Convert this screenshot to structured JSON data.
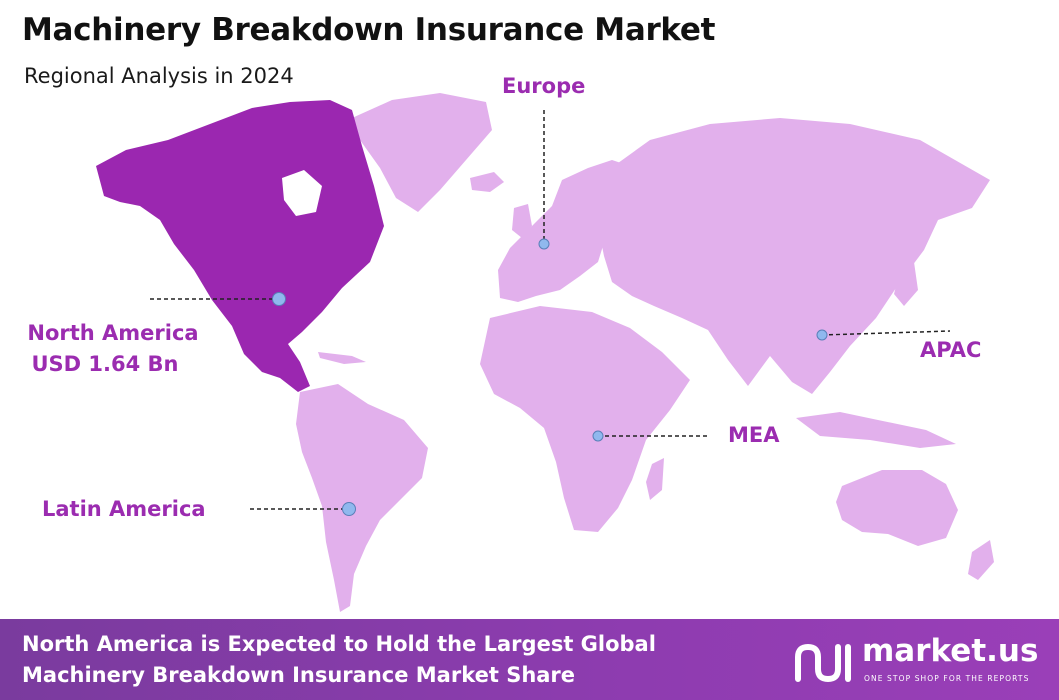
{
  "title": "Machinery Breakdown Insurance Market",
  "subtitle": "Regional Analysis in 2024",
  "colors": {
    "highlight_region": "#9b27b0",
    "other_regions": "#e2b0ec",
    "label": "#9b2cb0",
    "marker": "#90b8ee",
    "footer": "#8a3cae"
  },
  "regions": [
    {
      "name": "North America",
      "value": "USD 1.64 Bn",
      "highlighted": true
    },
    {
      "name": "Europe",
      "highlighted": false
    },
    {
      "name": "APAC",
      "highlighted": false
    },
    {
      "name": "MEA",
      "highlighted": false
    },
    {
      "name": "Latin America",
      "highlighted": false
    }
  ],
  "footer": {
    "line1": "North America is Expected to Hold the Largest Global",
    "line2": "Machinery Breakdown Insurance Market Share"
  },
  "logo": {
    "name": "market.us",
    "tagline": "ONE STOP SHOP FOR THE REPORTS",
    "icon": "market-us-logo-icon"
  }
}
